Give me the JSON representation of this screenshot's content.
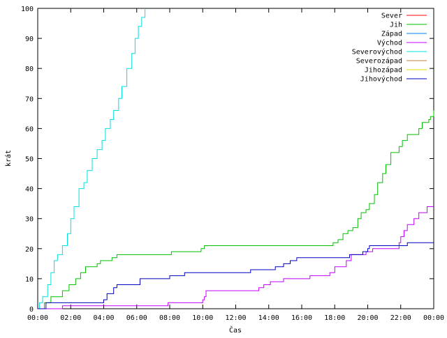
{
  "chart_data": {
    "type": "line",
    "xlabel": "Čas",
    "ylabel": "krát",
    "ylim": [
      0,
      100
    ],
    "xlim_hours": [
      0,
      24
    ],
    "grid": false,
    "legend_position": "top-right",
    "x_tick_labels": [
      "00:00",
      "02:00",
      "04:00",
      "06:00",
      "08:00",
      "10:00",
      "12:00",
      "14:00",
      "16:00",
      "18:00",
      "20:00",
      "22:00",
      "00:00"
    ],
    "y_tick_labels": [
      "0",
      "10",
      "20",
      "30",
      "40",
      "50",
      "60",
      "70",
      "80",
      "90",
      "100"
    ],
    "series": [
      {
        "name": "Sever",
        "color": "#ff0000",
        "points": []
      },
      {
        "name": "Jih",
        "color": "#00c000",
        "points": [
          [
            0,
            0
          ],
          [
            0.4,
            2
          ],
          [
            0.8,
            4
          ],
          [
            1.5,
            6
          ],
          [
            1.9,
            8
          ],
          [
            2.3,
            10
          ],
          [
            2.6,
            12
          ],
          [
            2.9,
            14
          ],
          [
            3.6,
            15
          ],
          [
            3.8,
            16
          ],
          [
            4.5,
            17
          ],
          [
            4.8,
            18
          ],
          [
            8.1,
            19
          ],
          [
            9.9,
            20
          ],
          [
            10.1,
            21
          ],
          [
            17.9,
            22
          ],
          [
            18.2,
            23
          ],
          [
            18.5,
            25
          ],
          [
            18.8,
            26
          ],
          [
            19.1,
            27
          ],
          [
            19.4,
            30
          ],
          [
            19.6,
            32
          ],
          [
            19.9,
            33
          ],
          [
            20.1,
            35
          ],
          [
            20.4,
            38
          ],
          [
            20.6,
            42
          ],
          [
            20.9,
            45
          ],
          [
            21.1,
            48
          ],
          [
            21.4,
            52
          ],
          [
            21.9,
            54
          ],
          [
            22.1,
            56
          ],
          [
            22.4,
            58
          ],
          [
            23.1,
            60
          ],
          [
            23.3,
            62
          ],
          [
            23.7,
            63
          ],
          [
            23.8,
            64
          ],
          [
            24,
            66
          ]
        ]
      },
      {
        "name": "Západ",
        "color": "#0080ff",
        "points": []
      },
      {
        "name": "Východ",
        "color": "#c000ff",
        "points": [
          [
            0,
            0
          ],
          [
            1.5,
            1
          ],
          [
            7.9,
            2
          ],
          [
            10.0,
            3
          ],
          [
            10.1,
            4
          ],
          [
            10.2,
            6
          ],
          [
            13.4,
            7
          ],
          [
            13.7,
            8
          ],
          [
            14.1,
            9
          ],
          [
            14.9,
            10
          ],
          [
            16.5,
            11
          ],
          [
            17.7,
            12
          ],
          [
            18.0,
            14
          ],
          [
            18.7,
            16
          ],
          [
            19.0,
            18
          ],
          [
            19.9,
            19
          ],
          [
            20.3,
            20
          ],
          [
            21.9,
            22
          ],
          [
            22.0,
            24
          ],
          [
            22.2,
            26
          ],
          [
            22.4,
            28
          ],
          [
            22.8,
            30
          ],
          [
            23.1,
            32
          ],
          [
            23.6,
            34
          ],
          [
            24,
            34
          ]
        ]
      },
      {
        "name": "Severovýchod",
        "color": "#00e0e0",
        "points": [
          [
            0,
            0
          ],
          [
            0.1,
            2
          ],
          [
            0.3,
            4
          ],
          [
            0.6,
            8
          ],
          [
            0.8,
            12
          ],
          [
            1.0,
            16
          ],
          [
            1.2,
            18
          ],
          [
            1.5,
            21
          ],
          [
            1.8,
            25
          ],
          [
            2.0,
            30
          ],
          [
            2.2,
            34
          ],
          [
            2.5,
            40
          ],
          [
            2.8,
            42
          ],
          [
            3.0,
            46
          ],
          [
            3.3,
            50
          ],
          [
            3.6,
            53
          ],
          [
            3.9,
            56
          ],
          [
            4.1,
            60
          ],
          [
            4.4,
            63
          ],
          [
            4.6,
            66
          ],
          [
            4.9,
            70
          ],
          [
            5.1,
            74
          ],
          [
            5.4,
            80
          ],
          [
            5.7,
            85
          ],
          [
            5.9,
            90
          ],
          [
            6.1,
            94
          ],
          [
            6.3,
            97
          ],
          [
            6.5,
            100
          ]
        ]
      },
      {
        "name": "Severozápad",
        "color": "#c08040",
        "points": []
      },
      {
        "name": "Jihozápad",
        "color": "#e0e000",
        "points": []
      },
      {
        "name": "Jihovýchod",
        "color": "#0000c0",
        "points": [
          [
            0,
            0
          ],
          [
            0.5,
            2
          ],
          [
            4.0,
            3
          ],
          [
            4.2,
            5
          ],
          [
            4.6,
            7
          ],
          [
            4.8,
            8
          ],
          [
            6.2,
            10
          ],
          [
            8.0,
            11
          ],
          [
            8.9,
            12
          ],
          [
            12.9,
            13
          ],
          [
            14.4,
            14
          ],
          [
            14.9,
            15
          ],
          [
            15.3,
            16
          ],
          [
            15.7,
            17
          ],
          [
            18.9,
            18
          ],
          [
            19.7,
            19
          ],
          [
            20.0,
            20
          ],
          [
            20.1,
            21
          ],
          [
            22.4,
            22
          ],
          [
            24,
            22
          ]
        ]
      }
    ]
  }
}
